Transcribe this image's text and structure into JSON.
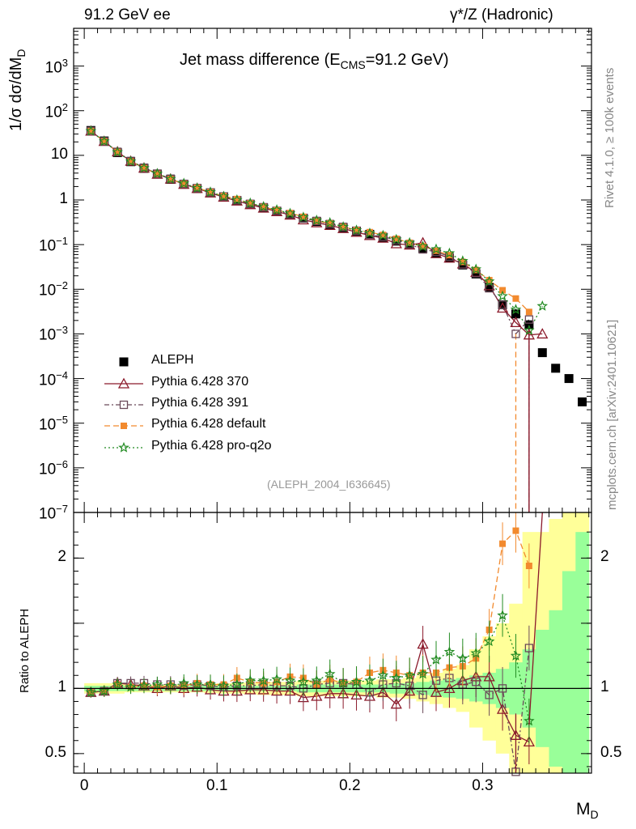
{
  "header": {
    "left": "91.2 GeV ee",
    "right": "γ*/Z (Hadronic)"
  },
  "side_labels": {
    "rivet": "Rivet 4.1.0, ≥ 100k events",
    "mcplots": "mcplots.cern.ch [arXiv:2401.10621]"
  },
  "chart_data": [
    {
      "type": "scatter",
      "panel": "main",
      "title": "Jet mass difference (E_CMS=91.2 GeV)",
      "title_main": "Jet mass difference (E",
      "title_sub": "CMS",
      "title_tail": "=91.2 GeV)",
      "ylabel": "1/σ  dσ/dM_D",
      "ylabel_text": "1/σ  dσ/dM",
      "ylabel_sub": "D",
      "yscale": "log",
      "ylim": [
        1e-07,
        7000
      ],
      "xlim": [
        -0.008,
        0.382
      ],
      "ytick_labels": [
        {
          "base": "10",
          "exp": "3",
          "v": 1000
        },
        {
          "base": "10",
          "exp": "2",
          "v": 100
        },
        {
          "base": "10",
          "exp": "",
          "v": 10
        },
        {
          "base": "1",
          "exp": "",
          "v": 1
        },
        {
          "base": "10",
          "exp": "−1",
          "v": 0.1
        },
        {
          "base": "10",
          "exp": "−2",
          "v": 0.01
        },
        {
          "base": "10",
          "exp": "−3",
          "v": 0.001
        },
        {
          "base": "10",
          "exp": "−4",
          "v": 0.0001
        },
        {
          "base": "10",
          "exp": "−5",
          "v": 1e-05
        },
        {
          "base": "10",
          "exp": "−6",
          "v": 1e-06
        },
        {
          "base": "10",
          "exp": "−7",
          "v": 1e-07
        }
      ],
      "watermark": "(ALEPH_2004_I636645)",
      "legend_position": "lower-left",
      "x": [
        0.005,
        0.015,
        0.025,
        0.035,
        0.045,
        0.055,
        0.065,
        0.075,
        0.085,
        0.095,
        0.105,
        0.115,
        0.125,
        0.135,
        0.145,
        0.155,
        0.165,
        0.175,
        0.185,
        0.195,
        0.205,
        0.215,
        0.225,
        0.235,
        0.245,
        0.255,
        0.265,
        0.275,
        0.285,
        0.295,
        0.305,
        0.315,
        0.325,
        0.335,
        0.345,
        0.355,
        0.365,
        0.375
      ],
      "series": [
        {
          "name": "ALEPH",
          "marker": "square",
          "color": "#000000",
          "values": [
            36,
            21,
            11.5,
            7.2,
            5.1,
            3.8,
            2.9,
            2.25,
            1.8,
            1.45,
            1.18,
            0.97,
            0.8,
            0.67,
            0.56,
            0.47,
            0.39,
            0.33,
            0.28,
            0.24,
            0.2,
            0.17,
            0.145,
            0.12,
            0.1,
            0.082,
            0.065,
            0.05,
            0.035,
            0.022,
            0.011,
            0.0045,
            0.0028,
            0.0016,
            0.00038,
            0.00017,
            0.0001,
            3e-05
          ]
        },
        {
          "name": "Pythia 6.428 370",
          "marker": "triangle",
          "color": "#8b1a2b",
          "dash": "",
          "values": [
            35,
            20.6,
            12,
            7.4,
            5.2,
            3.8,
            2.95,
            2.25,
            1.82,
            1.44,
            1.16,
            0.95,
            0.79,
            0.66,
            0.55,
            0.46,
            0.36,
            0.31,
            0.27,
            0.23,
            0.19,
            0.16,
            0.14,
            0.105,
            0.098,
            0.11,
            0.063,
            0.05,
            0.037,
            0.024,
            0.012,
            0.0038,
            0.0018,
            0.00095,
            0.001,
            null,
            null,
            null
          ]
        },
        {
          "name": "Pythia 6.428 391",
          "marker": "open-square",
          "color": "#6b4a5a",
          "dash": "6,3,2,3",
          "values": [
            35,
            20.6,
            12,
            7.5,
            5.3,
            3.9,
            3.0,
            2.3,
            1.85,
            1.48,
            1.19,
            0.99,
            0.82,
            0.69,
            0.57,
            0.48,
            0.39,
            0.34,
            0.29,
            0.25,
            0.205,
            0.165,
            0.15,
            0.125,
            0.102,
            0.078,
            0.069,
            0.054,
            0.036,
            0.023,
            0.0105,
            0.0045,
            0.001,
            0.0021,
            null,
            null,
            null,
            null
          ]
        },
        {
          "name": "Pythia 6.428 default",
          "marker": "filled-square",
          "color": "#f28a2e",
          "dash": "7,4",
          "values": [
            35,
            20.6,
            11.9,
            7.3,
            5.2,
            3.85,
            2.95,
            2.3,
            1.88,
            1.5,
            1.22,
            1.05,
            0.84,
            0.7,
            0.59,
            0.51,
            0.42,
            0.34,
            0.3,
            0.25,
            0.21,
            0.19,
            0.165,
            0.135,
            0.11,
            0.092,
            0.073,
            0.058,
            0.041,
            0.027,
            0.016,
            0.0095,
            0.0062,
            0.0031,
            null,
            null,
            null,
            null
          ]
        },
        {
          "name": "Pythia 6.428 pro-q2o",
          "marker": "star",
          "color": "#228b22",
          "dash": "2,3",
          "values": [
            35,
            20.6,
            11.8,
            7.3,
            5.2,
            3.9,
            2.95,
            2.35,
            1.85,
            1.5,
            1.2,
            1.0,
            0.85,
            0.71,
            0.6,
            0.5,
            0.41,
            0.35,
            0.31,
            0.25,
            0.21,
            0.18,
            0.16,
            0.13,
            0.11,
            0.091,
            0.079,
            0.064,
            0.043,
            0.028,
            0.015,
            0.007,
            0.0035,
            0.0012,
            0.0042,
            null,
            null,
            null
          ]
        }
      ]
    },
    {
      "type": "scatter",
      "panel": "ratio",
      "ylabel": "Ratio to ALEPH",
      "xlabel": "M_D",
      "xlabel_text": "M",
      "xlabel_sub": "D",
      "ylim": [
        0.35,
        2.35
      ],
      "xlim": [
        -0.008,
        0.382
      ],
      "xticks": [
        0,
        0.1,
        0.2,
        0.3
      ],
      "xtick_labels": [
        "0",
        "0.1",
        "0.2",
        "0.3"
      ],
      "yticks": [
        0.5,
        1,
        2
      ],
      "ytick_labels": [
        "0.5",
        "1",
        "2"
      ],
      "uncertainty_bands": {
        "yellow_halfwidth": [
          0.04,
          0.04,
          0.04,
          0.03,
          0.03,
          0.03,
          0.03,
          0.03,
          0.03,
          0.035,
          0.04,
          0.04,
          0.045,
          0.05,
          0.05,
          0.05,
          0.06,
          0.06,
          0.06,
          0.06,
          0.06,
          0.06,
          0.07,
          0.07,
          0.08,
          0.1,
          0.12,
          0.15,
          0.18,
          0.3,
          0.4,
          0.5,
          0.65,
          1.2,
          1.2,
          1.3,
          1.4,
          1.4
        ],
        "green_halfwidth": [
          0.02,
          0.02,
          0.02,
          0.02,
          0.02,
          0.02,
          0.02,
          0.02,
          0.02,
          0.02,
          0.02,
          0.02,
          0.02,
          0.02,
          0.02,
          0.02,
          0.03,
          0.03,
          0.03,
          0.03,
          0.03,
          0.03,
          0.03,
          0.04,
          0.04,
          0.05,
          0.06,
          0.07,
          0.08,
          0.1,
          0.12,
          0.15,
          0.2,
          0.3,
          0.45,
          0.6,
          0.9,
          1.2
        ]
      },
      "series": [
        {
          "name": "Pythia 6.428 370",
          "values": [
            0.97,
            0.98,
            1.04,
            1.03,
            1.02,
            1.0,
            1.02,
            1.0,
            1.01,
            0.99,
            0.98,
            0.98,
            0.99,
            0.99,
            0.98,
            0.98,
            0.93,
            0.94,
            0.96,
            0.96,
            0.95,
            0.94,
            0.97,
            0.88,
            0.98,
            1.34,
            0.97,
            1.0,
            1.06,
            1.09,
            1.09,
            0.84,
            0.64,
            0.59,
            null,
            null,
            null,
            null
          ]
        },
        {
          "name": "Pythia 6.428 391",
          "values": [
            0.97,
            0.98,
            1.04,
            1.04,
            1.04,
            1.03,
            1.03,
            1.02,
            1.03,
            1.02,
            1.01,
            1.02,
            1.02,
            1.03,
            1.02,
            1.02,
            1.0,
            1.03,
            1.04,
            1.04,
            1.03,
            0.97,
            1.03,
            1.04,
            1.02,
            0.95,
            1.06,
            1.08,
            1.03,
            1.05,
            0.95,
            1.0,
            0.36,
            1.31,
            null,
            null,
            null,
            null
          ]
        },
        {
          "name": "Pythia 6.428 default",
          "values": [
            0.97,
            0.98,
            1.03,
            1.01,
            1.02,
            1.01,
            1.02,
            1.02,
            1.04,
            1.03,
            1.03,
            1.08,
            1.05,
            1.04,
            1.05,
            1.09,
            1.08,
            1.03,
            1.07,
            1.04,
            1.05,
            1.12,
            1.14,
            1.12,
            1.1,
            1.12,
            1.12,
            1.16,
            1.17,
            1.23,
            1.45,
            2.11,
            2.21,
            1.94,
            null,
            null,
            null,
            null
          ]
        },
        {
          "name": "Pythia 6.428 pro-q2o",
          "values": [
            0.97,
            0.98,
            1.03,
            1.01,
            1.02,
            1.03,
            1.02,
            1.04,
            1.03,
            1.03,
            1.02,
            1.03,
            1.06,
            1.06,
            1.07,
            1.06,
            1.05,
            1.06,
            1.11,
            1.04,
            1.05,
            1.06,
            1.1,
            1.08,
            1.1,
            1.11,
            1.22,
            1.28,
            1.23,
            1.27,
            1.36,
            1.56,
            1.25,
            0.75,
            null,
            null,
            null,
            null
          ]
        }
      ]
    }
  ]
}
